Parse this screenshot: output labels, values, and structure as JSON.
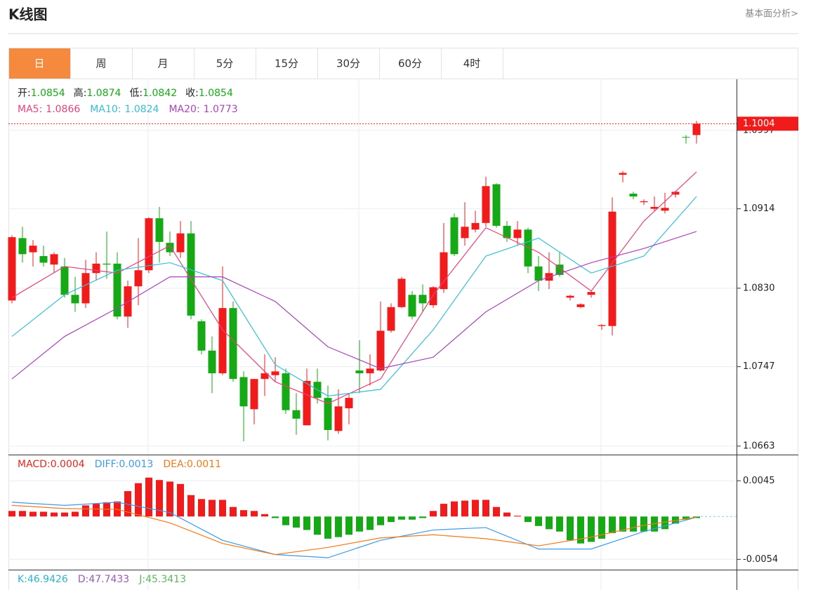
{
  "header": {
    "title": "K线图",
    "link": "基本面分析>"
  },
  "tabs": [
    "日",
    "周",
    "月",
    "5分",
    "15分",
    "30分",
    "60分",
    "4时"
  ],
  "active_tab": 0,
  "chart_data": [
    {
      "type": "candlestick",
      "open": [
        1.0817,
        1.0883,
        1.0868,
        1.0864,
        1.0855,
        1.0853,
        1.0823,
        1.0814,
        1.0846,
        1.0856,
        1.0856,
        1.08,
        1.0832,
        1.0849,
        1.0904,
        1.0878,
        1.0868,
        1.0888,
        1.0795,
        1.0764,
        1.074,
        1.0809,
        1.0736,
        1.0702,
        1.0734,
        1.0738,
        1.074,
        1.0701,
        1.0685,
        1.0731,
        1.0714,
        1.0679,
        1.0703,
        1.0743,
        1.074,
        1.0743,
        1.0785,
        1.081,
        1.0823,
        1.0823,
        1.0812,
        1.0829,
        1.0905,
        1.0883,
        1.0892,
        1.0899,
        1.094,
        1.0896,
        1.0883,
        1.0892,
        1.0853,
        1.0838,
        1.0855,
        1.082,
        1.081,
        1.0823,
        1.079,
        1.079,
        1.095,
        1.093,
        1.0921,
        1.0914,
        1.0912,
        1.0929,
        1.099,
        1.0992
      ],
      "high": [
        1.0886,
        1.0895,
        1.0881,
        1.0875,
        1.0868,
        1.0862,
        1.0842,
        1.086,
        1.0868,
        1.089,
        1.0868,
        1.0838,
        1.0883,
        1.0905,
        1.0916,
        1.089,
        1.0901,
        1.0901,
        1.0797,
        1.0779,
        1.0853,
        1.0816,
        1.0742,
        1.0734,
        1.076,
        1.0757,
        1.0745,
        1.0719,
        1.0745,
        1.0745,
        1.0727,
        1.0723,
        1.0719,
        1.0775,
        1.076,
        1.0816,
        1.0814,
        1.0842,
        1.0827,
        1.0834,
        1.0832,
        1.0899,
        1.0909,
        1.0921,
        1.0912,
        1.0948,
        1.0941,
        1.0901,
        1.0901,
        1.0894,
        1.0864,
        1.0868,
        1.0868,
        1.0823,
        1.0814,
        1.0827,
        1.0792,
        1.0926,
        1.0954,
        1.0932,
        1.0924,
        1.0927,
        1.0931,
        1.0933,
        1.0992,
        1.1007
      ],
      "low": [
        1.0814,
        1.0857,
        1.0853,
        1.0853,
        1.0846,
        1.082,
        1.0805,
        1.0809,
        1.0838,
        1.084,
        1.0797,
        1.0788,
        1.0812,
        1.0846,
        1.0857,
        1.0864,
        1.0862,
        1.0797,
        1.076,
        1.0719,
        1.0738,
        1.0731,
        1.0668,
        1.0686,
        1.0716,
        1.0731,
        1.0697,
        1.0675,
        1.0685,
        1.0708,
        1.0669,
        1.0676,
        1.0686,
        1.0719,
        1.0727,
        1.0742,
        1.0783,
        1.0809,
        1.0797,
        1.0805,
        1.0809,
        1.0825,
        1.0864,
        1.0875,
        1.0889,
        1.0895,
        1.0894,
        1.0879,
        1.0875,
        1.0846,
        1.0827,
        1.0829,
        1.0842,
        1.0817,
        1.0809,
        1.082,
        1.0786,
        1.078,
        1.0942,
        1.0924,
        1.0918,
        1.0912,
        1.0909,
        1.0926,
        1.0983,
        1.0983
      ],
      "close": [
        1.0884,
        1.0866,
        1.0875,
        1.0857,
        1.0866,
        1.0823,
        1.0814,
        1.0846,
        1.0856,
        1.0855,
        1.08,
        1.0832,
        1.0849,
        1.0904,
        1.0879,
        1.0868,
        1.0888,
        1.0801,
        1.0764,
        1.074,
        1.0809,
        1.0734,
        1.0705,
        1.0734,
        1.074,
        1.0742,
        1.0701,
        1.0692,
        1.0732,
        1.0714,
        1.068,
        1.0705,
        1.0714,
        1.074,
        1.0745,
        1.0785,
        1.081,
        1.084,
        1.08,
        1.0814,
        1.0831,
        1.0868,
        1.0866,
        1.0895,
        1.0899,
        1.0938,
        1.0896,
        1.0883,
        1.0892,
        1.0853,
        1.0838,
        1.0846,
        1.0844,
        1.0822,
        1.0813,
        1.0826,
        1.0791,
        1.0911,
        1.0952,
        1.0927,
        1.0922,
        1.0916,
        1.0915,
        1.0932,
        1.099,
        1.1004
      ],
      "up_color": "#f21b1b",
      "down_color": "#16a916",
      "info": [
        {
          "label": "开:",
          "value": 1.0854
        },
        {
          "label": "高:",
          "value": 1.0874
        },
        {
          "label": "低:",
          "value": 1.0842
        },
        {
          "label": "收:",
          "value": 1.0854
        }
      ],
      "info_color": "#16a916",
      "series": [
        {
          "name": "MA5:",
          "current": 1.0866,
          "color": "#e8417a",
          "x": [
            0,
            5,
            10,
            15,
            20,
            25,
            30,
            35,
            40,
            45,
            50,
            55,
            60,
            65
          ],
          "values": [
            1.082,
            1.0853,
            1.0846,
            1.0875,
            1.0786,
            1.0731,
            1.0708,
            1.0734,
            1.0823,
            1.0894,
            1.0868,
            1.0827,
            1.0901,
            1.0953
          ]
        },
        {
          "name": "MA10:",
          "current": 1.0824,
          "color": "#35bfd6",
          "x": [
            0,
            5,
            10,
            15,
            20,
            25,
            30,
            35,
            40,
            45,
            50,
            55,
            60,
            65
          ],
          "values": [
            1.0779,
            1.0823,
            1.0849,
            1.0857,
            1.0838,
            1.0749,
            1.0716,
            1.0723,
            1.0786,
            1.0864,
            1.0883,
            1.0846,
            1.0864,
            1.0927
          ]
        },
        {
          "name": "MA20:",
          "current": 1.0773,
          "color": "#a845b8",
          "x": [
            0,
            5,
            10,
            15,
            20,
            25,
            30,
            35,
            40,
            45,
            50,
            55,
            60,
            65
          ],
          "values": [
            1.0734,
            1.0779,
            1.0809,
            1.0842,
            1.0842,
            1.0816,
            1.0768,
            1.0745,
            1.0757,
            1.0805,
            1.0838,
            1.0857,
            1.0872,
            1.089
          ]
        }
      ],
      "price_line": 1.1004,
      "ylim": [
        1.0654,
        1.1051
      ],
      "yticks": [
        1.0997,
        1.0914,
        {
          "value": 1.083,
          "label": "1.0830"
        },
        1.0747,
        1.0663
      ],
      "grid": true
    },
    {
      "type": "macd",
      "name": "MACD:",
      "current": 0.0004,
      "values": [
        0.0007,
        0.0007,
        0.0006,
        0.0006,
        0.0005,
        0.0005,
        0.0006,
        0.0014,
        0.0016,
        0.0018,
        0.0019,
        0.0032,
        0.0042,
        0.0049,
        0.0046,
        0.0044,
        0.0041,
        0.0027,
        0.0022,
        0.0021,
        0.0021,
        0.0012,
        0.0008,
        0.0007,
        0.0003,
        -0.0002,
        -0.0011,
        -0.0014,
        -0.0017,
        -0.0023,
        -0.0028,
        -0.0026,
        -0.0023,
        -0.0019,
        -0.0017,
        -0.0011,
        -0.0007,
        -0.0004,
        -0.0004,
        -0.0002,
        0.0007,
        0.0016,
        0.0019,
        0.002,
        0.0021,
        0.0021,
        0.0012,
        0.0005,
        0.0001,
        -0.0007,
        -0.0012,
        -0.0016,
        -0.0019,
        -0.003,
        -0.0034,
        -0.0032,
        -0.0028,
        -0.0021,
        -0.0019,
        -0.0019,
        -0.0019,
        -0.0019,
        -0.0016,
        -0.0009,
        -0.0004,
        -0.0002
      ],
      "up_color": "#f21b1b",
      "down_color": "#16a916",
      "color": "#e8261e",
      "series": [
        {
          "name": "DIFF:",
          "current": 0.0013,
          "color": "#3c9be6",
          "x": [
            0,
            5,
            10,
            15,
            20,
            25,
            30,
            35,
            40,
            45,
            50,
            55,
            60,
            65
          ],
          "values": [
            0.0018,
            0.0014,
            0.0018,
            0.0005,
            -0.003,
            -0.0048,
            -0.0052,
            -0.003,
            -0.0017,
            -0.0014,
            -0.0041,
            -0.0041,
            -0.0019,
            -0.0001
          ]
        },
        {
          "name": "DEA:",
          "current": 0.0011,
          "color": "#f07a18",
          "x": [
            0,
            5,
            10,
            15,
            20,
            25,
            30,
            35,
            40,
            45,
            50,
            55,
            60,
            65
          ],
          "values": [
            0.0014,
            0.001,
            0.0009,
            -0.0008,
            -0.0034,
            -0.0048,
            -0.0039,
            -0.0027,
            -0.0023,
            -0.0028,
            -0.0037,
            -0.0026,
            -0.0011,
            -0.0001
          ]
        }
      ],
      "ylim": [
        -0.0067,
        0.0078
      ],
      "yticks": [
        0.0045,
        -0.0054
      ],
      "grid": true
    }
  ],
  "kdj": [
    {
      "name": "K:",
      "value": 46.9426,
      "color": "#2bb5c9"
    },
    {
      "name": "D:",
      "value": 47.7433,
      "color": "#9b59b6"
    },
    {
      "name": "J:",
      "value": 45.3413,
      "color": "#5cb85c"
    }
  ]
}
